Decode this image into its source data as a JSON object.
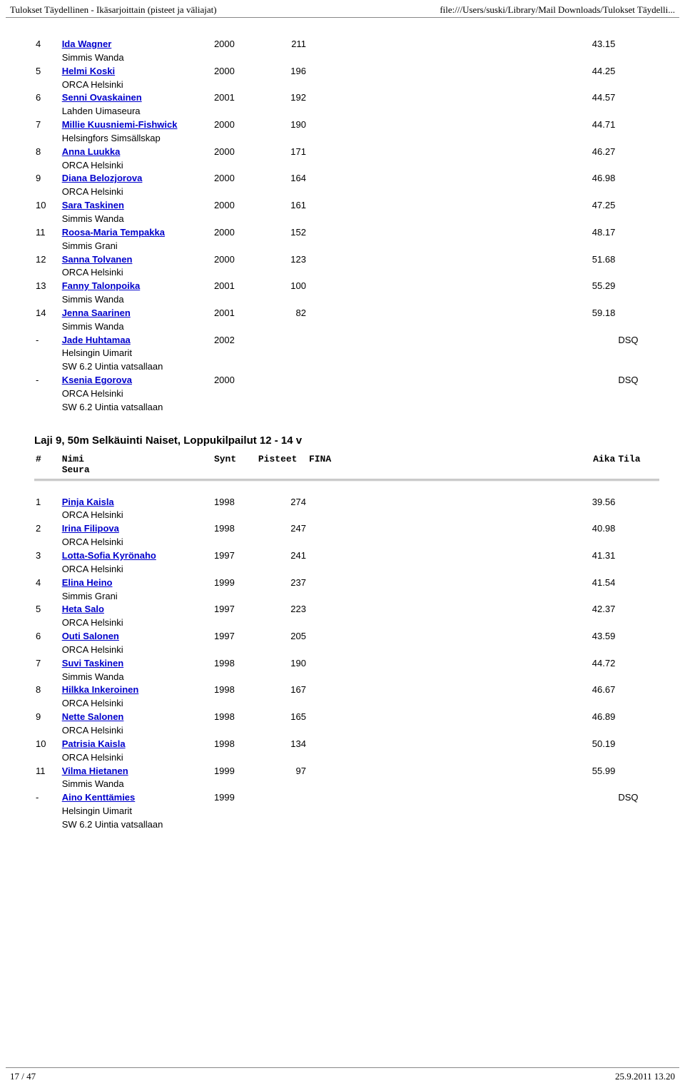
{
  "header": {
    "left": "Tulokset Täydellinen - Ikäsarjoittain (pisteet ja väliajat)",
    "right": "file:///Users/suski/Library/Mail Downloads/Tulokset Täydelli..."
  },
  "footer": {
    "left": "17 / 47",
    "right": "25.9.2011 13.20"
  },
  "rows1": [
    {
      "r": "4",
      "name": "Ida Wagner",
      "club": "Simmis Wanda",
      "synt": "2000",
      "pts": "211",
      "aika": "43.15"
    },
    {
      "r": "5",
      "name": "Helmi Koski",
      "club": "ORCA Helsinki",
      "synt": "2000",
      "pts": "196",
      "aika": "44.25"
    },
    {
      "r": "6",
      "name": "Senni Ovaskainen",
      "club": "Lahden Uimaseura",
      "synt": "2001",
      "pts": "192",
      "aika": "44.57"
    },
    {
      "r": "7",
      "name": "Millie Kuusniemi-Fishwick",
      "club": "Helsingfors Simsällskap",
      "synt": "2000",
      "pts": "190",
      "aika": "44.71"
    },
    {
      "r": "8",
      "name": "Anna Luukka",
      "club": "ORCA Helsinki",
      "synt": "2000",
      "pts": "171",
      "aika": "46.27"
    },
    {
      "r": "9",
      "name": "Diana Belozjorova",
      "club": "ORCA Helsinki",
      "synt": "2000",
      "pts": "164",
      "aika": "46.98"
    },
    {
      "r": "10",
      "name": "Sara Taskinen",
      "club": "Simmis Wanda",
      "synt": "2000",
      "pts": "161",
      "aika": "47.25"
    },
    {
      "r": "11",
      "name": "Roosa-Maria Tempakka",
      "club": "Simmis Grani",
      "synt": "2000",
      "pts": "152",
      "aika": "48.17"
    },
    {
      "r": "12",
      "name": "Sanna Tolvanen",
      "club": "ORCA Helsinki",
      "synt": "2000",
      "pts": "123",
      "aika": "51.68"
    },
    {
      "r": "13",
      "name": "Fanny Talonpoika",
      "club": "Simmis Wanda",
      "synt": "2001",
      "pts": "100",
      "aika": "55.29"
    },
    {
      "r": "14",
      "name": "Jenna Saarinen",
      "club": "Simmis Wanda",
      "synt": "2001",
      "pts": "82",
      "aika": "59.18"
    },
    {
      "r": "-",
      "name": "Jade Huhtamaa",
      "club": "Helsingin Uimarit",
      "note": "SW 6.2 Uintia vatsallaan",
      "synt": "2002",
      "pts": "",
      "aika": "",
      "tila": "DSQ"
    },
    {
      "r": "-",
      "name": "Ksenia Egorova",
      "club": "ORCA Helsinki",
      "note": "SW 6.2 Uintia vatsallaan",
      "synt": "2000",
      "pts": "",
      "aika": "",
      "tila": "DSQ"
    }
  ],
  "event2": {
    "title": "Laji 9, 50m Selkäuinti Naiset, Loppukilpailut 12 - 14 v",
    "cols": {
      "rank": "#",
      "nimi": "Nimi",
      "seura": "Seura",
      "synt": "Synt",
      "pts": "Pisteet",
      "fina": "FINA",
      "aika": "Aika",
      "tila": "Tila"
    }
  },
  "rows2": [
    {
      "r": "1",
      "name": "Pinja Kaisla",
      "club": "ORCA Helsinki",
      "synt": "1998",
      "pts": "274",
      "aika": "39.56"
    },
    {
      "r": "2",
      "name": "Irina Filipova",
      "club": "ORCA Helsinki",
      "synt": "1998",
      "pts": "247",
      "aika": "40.98"
    },
    {
      "r": "3",
      "name": "Lotta-Sofia Kyrönaho",
      "club": "ORCA Helsinki",
      "synt": "1997",
      "pts": "241",
      "aika": "41.31"
    },
    {
      "r": "4",
      "name": "Elina Heino",
      "club": "Simmis Grani",
      "synt": "1999",
      "pts": "237",
      "aika": "41.54"
    },
    {
      "r": "5",
      "name": "Heta Salo",
      "club": "ORCA Helsinki",
      "synt": "1997",
      "pts": "223",
      "aika": "42.37"
    },
    {
      "r": "6",
      "name": "Outi Salonen",
      "club": "ORCA Helsinki",
      "synt": "1997",
      "pts": "205",
      "aika": "43.59"
    },
    {
      "r": "7",
      "name": "Suvi Taskinen",
      "club": "Simmis Wanda",
      "synt": "1998",
      "pts": "190",
      "aika": "44.72"
    },
    {
      "r": "8",
      "name": "Hilkka Inkeroinen",
      "club": "ORCA Helsinki",
      "synt": "1998",
      "pts": "167",
      "aika": "46.67"
    },
    {
      "r": "9",
      "name": "Nette Salonen",
      "club": "ORCA Helsinki",
      "synt": "1998",
      "pts": "165",
      "aika": "46.89"
    },
    {
      "r": "10",
      "name": "Patrisia Kaisla",
      "club": "ORCA Helsinki",
      "synt": "1998",
      "pts": "134",
      "aika": "50.19"
    },
    {
      "r": "11",
      "name": "Vilma Hietanen",
      "club": "Simmis Wanda",
      "synt": "1999",
      "pts": "97",
      "aika": "55.99"
    },
    {
      "r": "-",
      "name": "Aino Kenttämies",
      "club": "Helsingin Uimarit",
      "note": "SW 6.2 Uintia vatsallaan",
      "synt": "1999",
      "pts": "",
      "aika": "",
      "tila": "DSQ"
    }
  ]
}
